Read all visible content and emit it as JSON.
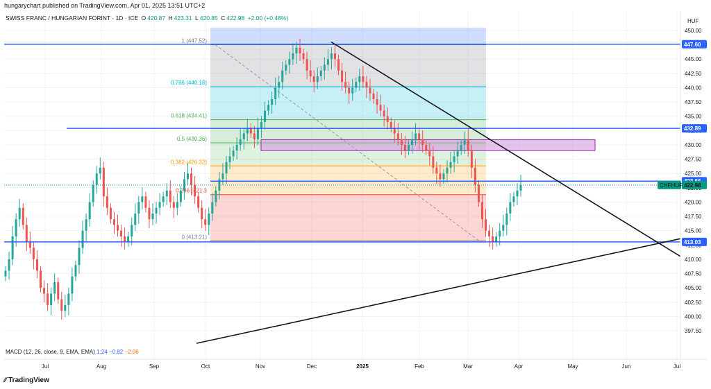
{
  "header": {
    "published_line": "hungarychart published on TradingView.com, Apr 01, 2025 13:51 UTC+2"
  },
  "legend": {
    "symbol_title": "SWISS FRANC / HUNGARIAN FORINT · 1D · ICE",
    "o_label": "O",
    "o_value": "420.87",
    "h_label": "H",
    "h_value": "423.31",
    "l_label": "L",
    "l_value": "420.85",
    "c_label": "C",
    "c_value": "422.98",
    "change": "+2.00 (+0.48%)"
  },
  "macd": {
    "label": "MACD (12, 26, close, 9, EMA, EMA)",
    "v1": "1.24",
    "v2": "−0.82",
    "v3": "−2.06"
  },
  "footer": {
    "brand": "TradingView"
  },
  "colors": {
    "up": "#26a69a",
    "down": "#ef5350",
    "hline": "#2962ff",
    "tag_blue": "#2962ff",
    "tag_current": "#089981",
    "zone": "#e1bee7"
  },
  "chart_data": {
    "type": "candlestick",
    "currency": "HUF",
    "symbol_tag": "CHFHUF",
    "last_price": "422.98",
    "y_ticks": [
      "397.50",
      "400.00",
      "402.50",
      "405.00",
      "407.50",
      "410.00",
      "412.50",
      "415.00",
      "417.50",
      "420.00",
      "422.50",
      "425.00",
      "427.50",
      "430.00",
      "432.50",
      "435.00",
      "437.50",
      "440.00",
      "442.50",
      "445.00",
      "447.50",
      "450.00"
    ],
    "ylim": [
      395.0,
      452.0
    ],
    "x_ticks": [
      "Jul",
      "Aug",
      "Sep",
      "Oct",
      "Nov",
      "Dec",
      "2025",
      "Feb",
      "Mar",
      "Apr",
      "May",
      "Jun",
      "Jul"
    ],
    "x_tick_bold": [
      false,
      false,
      false,
      false,
      false,
      false,
      true,
      false,
      false,
      false,
      false,
      false,
      false
    ],
    "horizontal_levels": [
      {
        "price": 447.6,
        "label": "447.60"
      },
      {
        "price": 432.89,
        "label": "432.89"
      },
      {
        "price": 423.66,
        "label": "423.66"
      },
      {
        "price": 413.03,
        "label": "413.03"
      }
    ],
    "fibonacci": [
      {
        "ratio": "1",
        "price": "447.52",
        "text": "1 (447.52)",
        "color": "#787b86"
      },
      {
        "ratio": "0.786",
        "price": "440.18",
        "text": "0.786 (440.18)",
        "color": "#00bcd4"
      },
      {
        "ratio": "0.618",
        "price": "434.41",
        "text": "0.618 (434.41)",
        "color": "#4caf50"
      },
      {
        "ratio": "0.5",
        "price": "430.36",
        "text": "0.5 (430.36)",
        "color": "#4caf50"
      },
      {
        "ratio": "0.382",
        "price": "426.32",
        "text": "0.382 (426.32)",
        "color": "#ff9800"
      },
      {
        "ratio": "0.236",
        "price": "421.3",
        "text": "0.236 (421.3",
        "color": "#f44336"
      },
      {
        "ratio": "0",
        "price": "413.21",
        "text": "0 (413.21)",
        "color": "#787b86"
      }
    ],
    "candles_close_approx": [
      408,
      410,
      414,
      417,
      419,
      416,
      413,
      412,
      410,
      408,
      405,
      404,
      402,
      404,
      406,
      403,
      401,
      402,
      404,
      407,
      409,
      412,
      415,
      417,
      420,
      423,
      425,
      426,
      421,
      419,
      417,
      416,
      415,
      414,
      413,
      414,
      416,
      418,
      420,
      421,
      419,
      417,
      418,
      419,
      420,
      421,
      422,
      420,
      419,
      420,
      422,
      424,
      425,
      423,
      421,
      419,
      417,
      416,
      418,
      420,
      422,
      424,
      425,
      427,
      428,
      429,
      430,
      431,
      432,
      433,
      432,
      431,
      433,
      434,
      436,
      437,
      438,
      440,
      441,
      443,
      444,
      445,
      446,
      447,
      446,
      445,
      443,
      442,
      441,
      442,
      443,
      444,
      445,
      446,
      445,
      443,
      441,
      440,
      439,
      440,
      441,
      442,
      441,
      440,
      439,
      438,
      437,
      436,
      435,
      434,
      433,
      432,
      431,
      430,
      429,
      430,
      431,
      432,
      431,
      430,
      429,
      428,
      426,
      425,
      424,
      425,
      426,
      427,
      428,
      429,
      430,
      431,
      429,
      426,
      423,
      420,
      417,
      415,
      414,
      413,
      414,
      415,
      416,
      418,
      420,
      421,
      422,
      423
    ]
  }
}
